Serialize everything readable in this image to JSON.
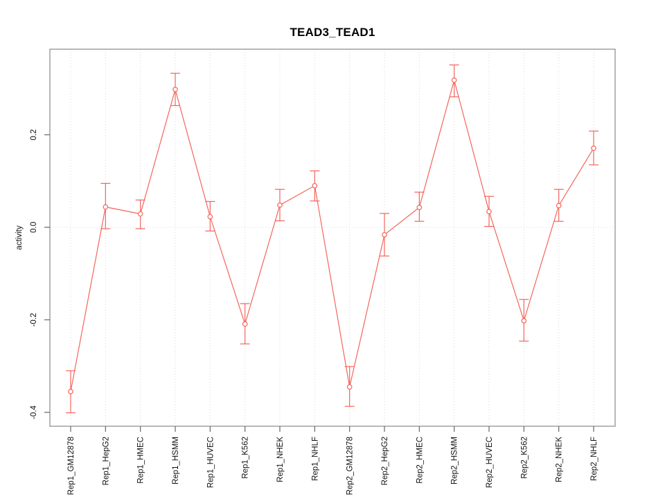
{
  "chart_data": {
    "type": "line",
    "title": "TEAD3_TEAD1",
    "xlabel": "",
    "ylabel": "activity",
    "categories": [
      "Rep1_GM12878",
      "Rep1_HepG2",
      "Rep1_HMEC",
      "Rep1_HSMM",
      "Rep1_HUVEC",
      "Rep1_K562",
      "Rep1_NHEK",
      "Rep1_NHLF",
      "Rep2_GM12878",
      "Rep2_HepG2",
      "Rep2_HMEC",
      "Rep2_HSMM",
      "Rep2_HUVEC",
      "Rep2_K562",
      "Rep2_NHEK",
      "Rep2_NHLF"
    ],
    "series": [
      {
        "name": "activity",
        "marker": "open-circle",
        "color": "#f4645a",
        "values": [
          -0.355,
          0.044,
          0.029,
          0.298,
          0.023,
          -0.209,
          0.048,
          0.09,
          -0.345,
          -0.016,
          0.043,
          0.318,
          0.034,
          -0.202,
          0.047,
          0.171
        ],
        "error_upper": [
          -0.31,
          0.095,
          0.059,
          0.333,
          0.056,
          -0.165,
          0.082,
          0.122,
          -0.301,
          0.03,
          0.076,
          0.351,
          0.067,
          -0.156,
          0.082,
          0.208
        ],
        "error_lower": [
          -0.401,
          -0.003,
          -0.003,
          0.263,
          -0.008,
          -0.252,
          0.014,
          0.057,
          -0.387,
          -0.062,
          0.013,
          0.282,
          0.002,
          -0.246,
          0.013,
          0.135
        ]
      }
    ],
    "ylim": [
      -0.43,
      0.385
    ],
    "yticks": {
      "values": [
        -0.4,
        -0.2,
        0.0,
        0.2
      ],
      "labels": [
        "-0.4",
        "-0.2",
        "0.0",
        "0.2"
      ]
    },
    "grid": {
      "vertical_per_category": true,
      "horizontal_zero_line": true,
      "style": "dotted",
      "color": "#d8d8d8"
    },
    "axis": {
      "box_color": "#888888",
      "tick_color": "#666666",
      "label_color": "#111111"
    },
    "legend": "none",
    "x_tick_label_rotation": 90,
    "y_tick_label_rotation": 90
  }
}
